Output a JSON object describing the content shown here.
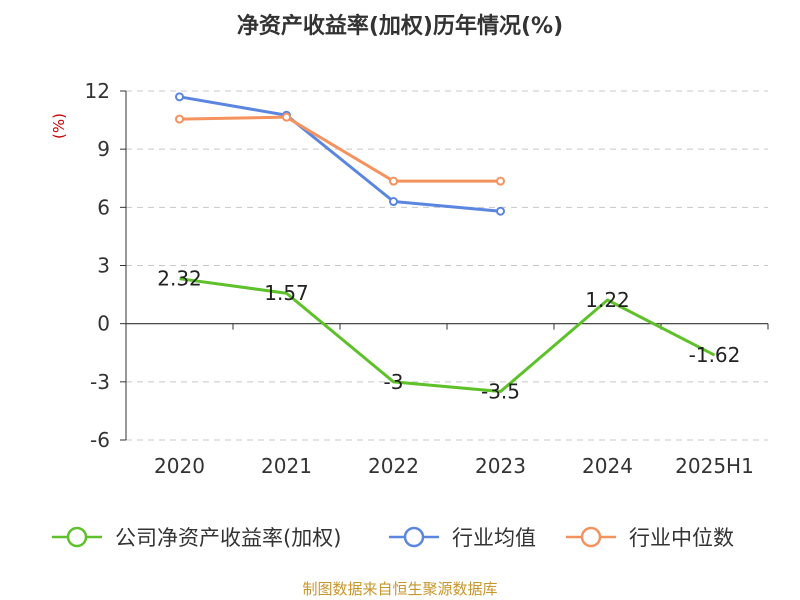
{
  "chart_data": {
    "type": "line",
    "title": "净资产收益率(加权)历年情况(%)",
    "ylabel": "(%)",
    "categories": [
      "2020",
      "2021",
      "2022",
      "2023",
      "2024",
      "2025H1"
    ],
    "ylim": [
      -6,
      12
    ],
    "yticks": [
      12,
      9,
      6,
      3,
      0,
      -3,
      -6
    ],
    "grid": true,
    "legend_position": "bottom",
    "series": [
      {
        "name": "公司净资产收益率(加权)",
        "color": "#5ec12a",
        "values": [
          2.32,
          1.57,
          -3,
          -3.5,
          1.22,
          -1.62
        ],
        "labels": [
          "2.32",
          "1.57",
          "-3",
          "-3.5",
          "1.22",
          "-1.62"
        ]
      },
      {
        "name": "行业均值",
        "color": "#5b86e0",
        "values": [
          11.7,
          10.75,
          6.3,
          5.8,
          null,
          null
        ]
      },
      {
        "name": "行业中位数",
        "color": "#f5935f",
        "values": [
          10.55,
          10.65,
          7.35,
          7.35,
          null,
          null
        ]
      }
    ]
  },
  "source": "制图数据来自恒生聚源数据库"
}
